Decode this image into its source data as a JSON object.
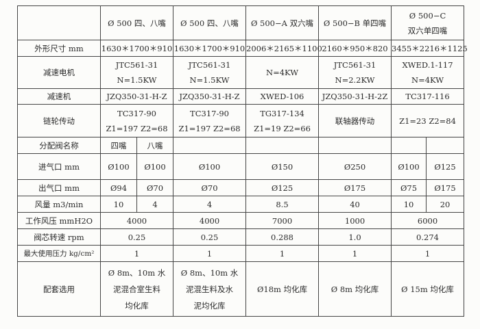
{
  "headers": [
    "",
    "Ø 500 四、八嘴",
    "Ø 500 四、八嘴",
    "Ø 500−A 双六嘴",
    "Ø 500−B 单四嘴",
    [
      "Ø 500−C",
      "双六单四嘴"
    ]
  ],
  "rows": {
    "size": {
      "label": "外形尺寸 mm",
      "values": [
        "1630＊1700＊910",
        "1630＊1700＊910",
        "2006＊2165＊1100",
        "2160＊950＊820",
        "3455＊2216＊1125"
      ]
    },
    "motor": {
      "label": "减速电机",
      "values": [
        [
          "JTC561-31",
          "N=1.5KW"
        ],
        [
          "JTC561-31",
          "N=1.5KW"
        ],
        [
          "N=4KW"
        ],
        [
          "JTC561-31",
          "N=2.2KW"
        ],
        [
          "XWED.1-117",
          "N=4KW"
        ]
      ]
    },
    "reducer": {
      "label": "减速机",
      "values": [
        "JZQ350-31-H-Z",
        "JZQ350-31-H-Z",
        "XWED-106",
        "JZQ350-31-H-2Z",
        "TC317-116"
      ]
    },
    "chain": {
      "label": "链轮传动",
      "values": [
        [
          "TC317-90",
          "Z1=197 Z2=68"
        ],
        [
          "TC317-90",
          "Z1=197 Z2=68"
        ],
        [
          "TG317-134",
          "Z1=19 Z2=66"
        ],
        [
          "联轴器传动"
        ],
        [
          "Z1=23 Z2=84"
        ]
      ]
    },
    "valve": {
      "label": "分配阀名称",
      "values": [
        "四嘴",
        "八嘴"
      ]
    },
    "inlet": {
      "label": "进气口 mm",
      "values": [
        "Ø100",
        "Ø100",
        "Ø100",
        "Ø150",
        "Ø250",
        "Ø100",
        "Ø125"
      ]
    },
    "outlet": {
      "label": "出气口 mm",
      "values": [
        "Ø94",
        "Ø70",
        "Ø70",
        "Ø125",
        "Ø175",
        "Ø75",
        "Ø175"
      ]
    },
    "airflow": {
      "label": "风量 m3/min",
      "values": [
        "10",
        "4",
        "4",
        "8.5",
        "40",
        "10",
        "20"
      ]
    },
    "pressure": {
      "label": "工作风压 mmH2O",
      "values": [
        "4000",
        "4000",
        "7000",
        "1000",
        "6000"
      ]
    },
    "speed": {
      "label": "阀芯转速 rpm",
      "values": [
        "0.25",
        "0.25",
        "0.288",
        "1.0",
        "0.274"
      ]
    },
    "maxp": {
      "label": "最大使用压力 kg/cm²",
      "values": [
        "1",
        "1",
        "1",
        "1",
        "1"
      ]
    },
    "usage": {
      "label": "配套选用",
      "values": [
        [
          "Ø 8m、10m 水",
          "泥混合室生料",
          "均化库"
        ],
        [
          "Ø 8m、10m 水",
          "泥混生料及水",
          "泥均化库"
        ],
        [
          "Ø18m 均化库"
        ],
        [
          "Ø 8m 均化库"
        ],
        [
          "Ø 15m 均化库"
        ]
      ]
    }
  }
}
